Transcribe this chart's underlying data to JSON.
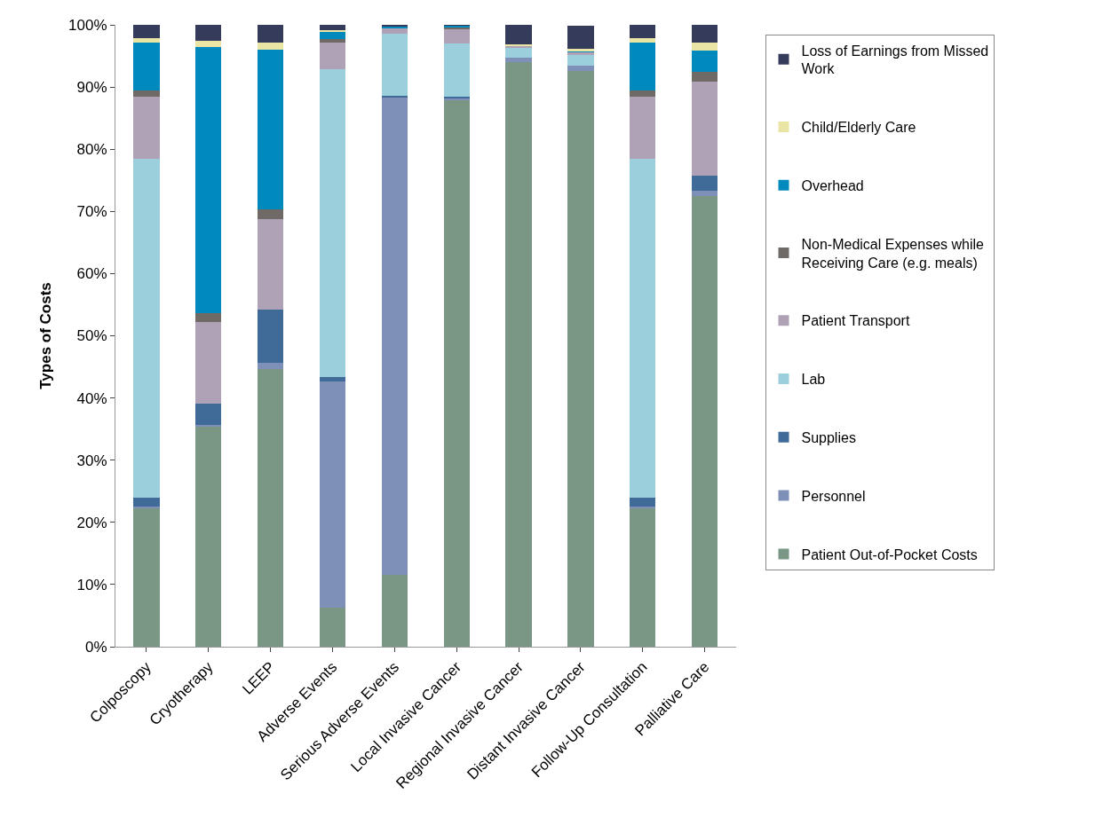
{
  "chart_data": {
    "type": "bar",
    "stacked": true,
    "ylabel": "Types of Costs",
    "categories": [
      "Colposcopy",
      "Cryotherapy",
      "LEEP",
      "Adverse Events",
      "Serious Adverse Events",
      "Local Invasive Cancer",
      "Regional Invasive Cancer",
      "Distant Invasive Cancer",
      "Follow-Up Consultation",
      "Palliative Care"
    ],
    "series": [
      {
        "name": "Patient Out-of-Pocket Costs",
        "color": "#7a9785",
        "values": [
          22.2,
          35.5,
          44.7,
          6.3,
          11.5,
          87.9,
          94.0,
          92.6,
          22.2,
          72.5
        ]
      },
      {
        "name": "Personnel",
        "color": "#7f90b8",
        "values": [
          0.3,
          0.2,
          1.0,
          36.3,
          76.9,
          0.4,
          0.7,
          0.8,
          0.3,
          0.8
        ]
      },
      {
        "name": "Supplies",
        "color": "#406a98",
        "values": [
          1.5,
          3.4,
          8.5,
          0.7,
          0.2,
          0.2,
          0,
          0,
          1.5,
          2.4
        ]
      },
      {
        "name": "Lab",
        "color": "#9bcfdc",
        "values": [
          54.4,
          0,
          0,
          49.5,
          10.0,
          8.5,
          1.6,
          1.8,
          54.4,
          0
        ]
      },
      {
        "name": "Patient Transport",
        "color": "#afa2b6",
        "values": [
          10.0,
          13.1,
          14.6,
          4.4,
          0.9,
          2.4,
          0.4,
          0.4,
          10.0,
          15.1
        ]
      },
      {
        "name": "Non-Medical Expenses while Receiving Care (e.g. meals)",
        "color": "#6f6a66",
        "values": [
          1.0,
          1.4,
          1.5,
          0.5,
          null,
          0.2,
          0,
          null,
          1.0,
          1.7
        ]
      },
      {
        "name": "Overhead",
        "color": "#0089bc",
        "values": [
          7.8,
          42.8,
          25.7,
          1.1,
          0.3,
          0.3,
          0,
          0.1,
          7.8,
          3.3
        ]
      },
      {
        "name": "Child/Elderly Care",
        "color": "#ebe5a5",
        "values": [
          0.7,
          1.0,
          1.1,
          0.3,
          0,
          0,
          0.2,
          0.5,
          0.7,
          1.3
        ]
      },
      {
        "name": "Loss of Earnings from Missed Work",
        "color": "#353b5b",
        "values": [
          2.1,
          2.6,
          2.9,
          0.9,
          0.1,
          0.1,
          3.1,
          3.7,
          2.1,
          2.9
        ]
      }
    ],
    "ylim": [
      0,
      100
    ],
    "yticks": [
      {
        "value": 0,
        "label": "0%"
      },
      {
        "value": 10,
        "label": "10%"
      },
      {
        "value": 20,
        "label": "20%"
      },
      {
        "value": 30,
        "label": "30%"
      },
      {
        "value": 40,
        "label": "40%"
      },
      {
        "value": 50,
        "label": "50%"
      },
      {
        "value": 60,
        "label": "60%"
      },
      {
        "value": 70,
        "label": "70%"
      },
      {
        "value": 80,
        "label": "80%"
      },
      {
        "value": 90,
        "label": "90%"
      },
      {
        "value": 100,
        "label": "100%"
      }
    ],
    "legend": "right"
  }
}
